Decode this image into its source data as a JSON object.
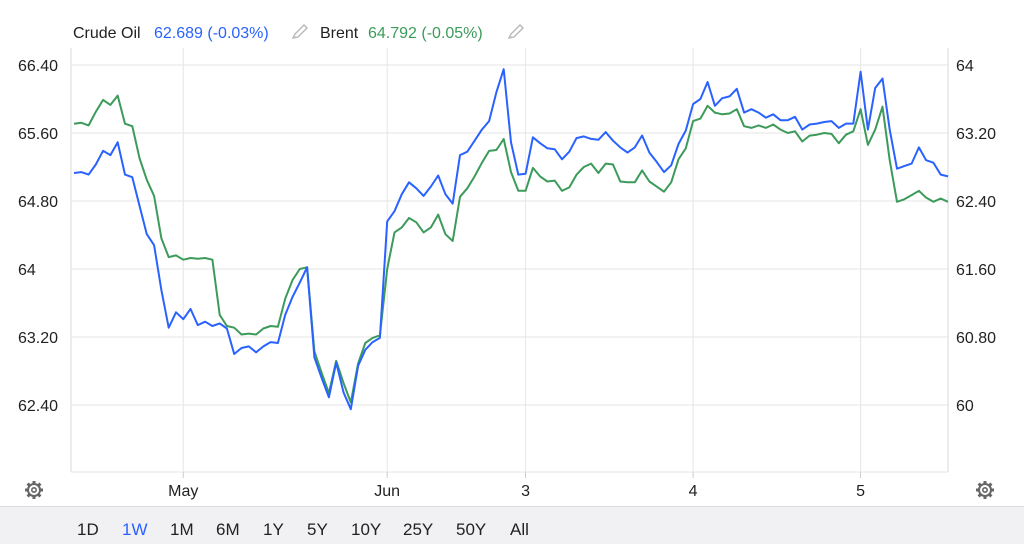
{
  "legend": {
    "crude_name": "Crude Oil",
    "crude_value": "62.689 (-0.03%)",
    "brent_name": "Brent",
    "brent_value": "64.792 (-0.05%)"
  },
  "range_buttons": [
    "1D",
    "1W",
    "1M",
    "6M",
    "1Y",
    "5Y",
    "10Y",
    "25Y",
    "50Y",
    "All"
  ],
  "active_range": "1W",
  "colors": {
    "crude": "#2962ff",
    "brent": "#3c9b5a",
    "grid": "#e6e6e6"
  },
  "icons": {
    "left_settings": "gear-icon",
    "right_settings": "gear-icon",
    "edit": "pencil-icon"
  },
  "chart_data": {
    "type": "line",
    "x_tick_labels": [
      "May",
      "Jun",
      "3",
      "4",
      "5"
    ],
    "left_axis": {
      "ticks": [
        "66.40",
        "65.60",
        "64.80",
        "64",
        "63.20",
        "62.40"
      ],
      "values": [
        66.4,
        65.6,
        64.8,
        64.0,
        63.2,
        62.4
      ],
      "range": [
        61.6,
        66.4
      ]
    },
    "right_axis": {
      "ticks": [
        "64",
        "63.20",
        "62.40",
        "61.60",
        "60.80",
        "60"
      ],
      "values": [
        64.0,
        63.2,
        62.4,
        61.6,
        60.8,
        60.0
      ],
      "range": [
        59.2,
        64.0
      ]
    },
    "series": [
      {
        "name": "Crude Oil",
        "axis": "right",
        "x": [
          0,
          1,
          2,
          3,
          4,
          5,
          6,
          7,
          8,
          9,
          10,
          11,
          12,
          13,
          14,
          15,
          16,
          17,
          18,
          19,
          20,
          21,
          22,
          23,
          24,
          25,
          26,
          27,
          28,
          29,
          30,
          31,
          32,
          33,
          34,
          35,
          36,
          37,
          38,
          39,
          40,
          41,
          42,
          43,
          44,
          45,
          46,
          47,
          48,
          49,
          50,
          51,
          52,
          53,
          54,
          55,
          56,
          57,
          58,
          59,
          60,
          61,
          62,
          63,
          64,
          65,
          66,
          67,
          68,
          69,
          70,
          71,
          72,
          73,
          74,
          75,
          76,
          77,
          78,
          79,
          80,
          81,
          82,
          83,
          84,
          85,
          86,
          87,
          88,
          89,
          90,
          91,
          92,
          93,
          94,
          95,
          96,
          97,
          98,
          99,
          100,
          101,
          102,
          103,
          104,
          105,
          106,
          107,
          108,
          109,
          110,
          111,
          112,
          113,
          114,
          115,
          116,
          117,
          118,
          119,
          120
        ],
        "values": [
          62.73,
          62.74,
          62.71,
          62.83,
          62.99,
          62.94,
          63.09,
          62.71,
          62.68,
          62.34,
          62.01,
          61.88,
          61.35,
          60.91,
          61.09,
          61.01,
          61.13,
          60.94,
          60.98,
          60.93,
          60.96,
          60.9,
          60.6,
          60.67,
          60.69,
          60.62,
          60.69,
          60.74,
          60.73,
          61.06,
          61.27,
          61.44,
          61.62,
          60.56,
          60.32,
          60.09,
          60.5,
          60.15,
          59.95,
          60.46,
          60.65,
          60.74,
          60.79,
          62.16,
          62.28,
          62.48,
          62.62,
          62.55,
          62.46,
          62.57,
          62.7,
          62.48,
          62.37,
          62.94,
          62.98,
          63.11,
          63.24,
          63.34,
          63.68,
          63.95,
          63.09,
          62.71,
          62.72,
          63.15,
          63.08,
          63.02,
          63.01,
          62.89,
          62.98,
          63.14,
          63.16,
          63.13,
          63.12,
          63.21,
          63.11,
          63.03,
          62.97,
          63.03,
          63.17,
          62.97,
          62.86,
          62.74,
          62.82,
          63.07,
          63.23,
          63.54,
          63.6,
          63.8,
          63.52,
          63.61,
          63.63,
          63.72,
          63.44,
          63.48,
          63.44,
          63.38,
          63.42,
          63.35,
          63.35,
          63.39,
          63.24,
          63.3,
          63.31,
          63.33,
          63.34,
          63.26,
          63.31,
          63.31,
          63.92,
          63.24,
          63.73,
          63.84,
          63.24,
          62.78,
          62.81,
          62.84,
          63.03,
          62.88,
          62.85,
          62.71,
          62.69
        ]
      },
      {
        "name": "Brent",
        "axis": "left",
        "x": [
          0,
          1,
          2,
          3,
          4,
          5,
          6,
          7,
          8,
          9,
          10,
          11,
          12,
          13,
          14,
          15,
          16,
          17,
          18,
          19,
          20,
          21,
          22,
          23,
          24,
          25,
          26,
          27,
          28,
          29,
          30,
          31,
          32,
          33,
          34,
          35,
          36,
          37,
          38,
          39,
          40,
          41,
          42,
          43,
          44,
          45,
          46,
          47,
          48,
          49,
          50,
          51,
          52,
          53,
          54,
          55,
          56,
          57,
          58,
          59,
          60,
          61,
          62,
          63,
          64,
          65,
          66,
          67,
          68,
          69,
          70,
          71,
          72,
          73,
          74,
          75,
          76,
          77,
          78,
          79,
          80,
          81,
          82,
          83,
          84,
          85,
          86,
          87,
          88,
          89,
          90,
          91,
          92,
          93,
          94,
          95,
          96,
          97,
          98,
          99,
          100,
          101,
          102,
          103,
          104,
          105,
          106,
          107,
          108,
          109,
          110,
          111,
          112,
          113,
          114,
          115,
          116,
          117,
          118,
          119,
          120
        ],
        "values": [
          65.71,
          65.72,
          65.69,
          65.85,
          65.99,
          65.93,
          66.04,
          65.71,
          65.68,
          65.3,
          65.05,
          64.86,
          64.36,
          64.14,
          64.16,
          64.11,
          64.13,
          64.12,
          64.13,
          64.11,
          63.46,
          63.33,
          63.31,
          63.23,
          63.24,
          63.23,
          63.3,
          63.33,
          63.32,
          63.65,
          63.87,
          64.0,
          64.02,
          63.03,
          62.78,
          62.54,
          62.92,
          62.66,
          62.43,
          62.89,
          63.13,
          63.19,
          63.22,
          64.0,
          64.43,
          64.49,
          64.6,
          64.55,
          64.43,
          64.49,
          64.64,
          64.41,
          64.33,
          64.85,
          64.95,
          65.09,
          65.25,
          65.39,
          65.4,
          65.53,
          65.14,
          64.92,
          64.92,
          65.19,
          65.09,
          65.03,
          65.04,
          64.92,
          64.96,
          65.11,
          65.2,
          65.24,
          65.13,
          65.24,
          65.23,
          65.03,
          65.02,
          65.02,
          65.16,
          65.03,
          64.97,
          64.91,
          65.02,
          65.29,
          65.42,
          65.74,
          65.77,
          65.92,
          65.84,
          65.82,
          65.83,
          65.88,
          65.68,
          65.66,
          65.69,
          65.66,
          65.7,
          65.64,
          65.6,
          65.62,
          65.5,
          65.57,
          65.58,
          65.6,
          65.59,
          65.48,
          65.58,
          65.62,
          65.88,
          65.46,
          65.64,
          65.91,
          65.28,
          64.79,
          64.82,
          64.87,
          64.92,
          64.84,
          64.79,
          64.83,
          64.79
        ]
      }
    ],
    "x_ticks_at": [
      15,
      43,
      62,
      85,
      108
    ]
  }
}
